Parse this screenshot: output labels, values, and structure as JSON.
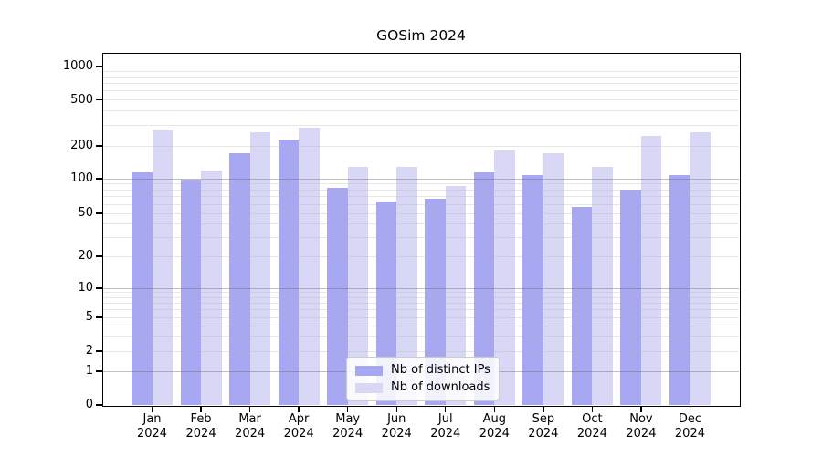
{
  "chart_data": {
    "type": "bar",
    "title": "GOSim 2024",
    "categories": [
      "Jan",
      "Feb",
      "Mar",
      "Apr",
      "May",
      "Jun",
      "Jul",
      "Aug",
      "Sep",
      "Oct",
      "Nov",
      "Dec"
    ],
    "category_year": "2024",
    "series": [
      {
        "name": "Nb of distinct IPs",
        "color": "#a8a8f2",
        "values": [
          115,
          99,
          172,
          225,
          83,
          63,
          67,
          114,
          107,
          57,
          81,
          107
        ]
      },
      {
        "name": "Nb of downloads",
        "color": "#d8d8f6",
        "values": [
          270,
          118,
          262,
          290,
          128,
          128,
          86,
          183,
          171,
          128,
          246,
          262
        ]
      }
    ],
    "yscale": "symlog",
    "ylim": [
      0,
      1200
    ],
    "yticks": [
      0,
      1,
      2,
      5,
      10,
      20,
      50,
      100,
      200,
      500,
      1000
    ],
    "major_gridlines": [
      1,
      10,
      100,
      1000
    ],
    "minor_gridlines": [
      2,
      3,
      4,
      5,
      6,
      7,
      8,
      9,
      20,
      30,
      40,
      50,
      60,
      70,
      80,
      90,
      200,
      300,
      400,
      500,
      600,
      700,
      800,
      900
    ],
    "grid": "on",
    "legend_position": "lower center",
    "xlabel": "",
    "ylabel": ""
  }
}
